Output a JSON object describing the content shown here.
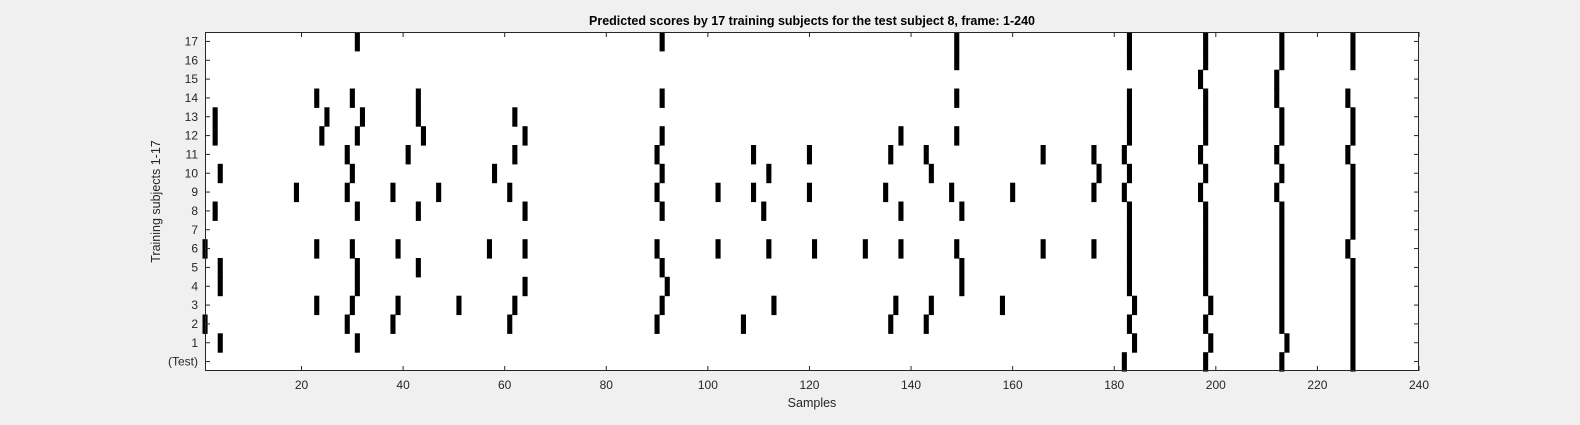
{
  "chart_data": {
    "type": "heatmap",
    "title": "Predicted scores by 17 training subjects for the test subject 8, frame: 1-240",
    "xlabel": "Samples",
    "ylabel": "Training subjects 1-17",
    "xlim": [
      1,
      240
    ],
    "x_ticks": [
      20,
      40,
      60,
      80,
      100,
      120,
      140,
      160,
      180,
      200,
      220,
      240
    ],
    "y_rows": [
      "(Test)",
      "1",
      "2",
      "3",
      "4",
      "5",
      "6",
      "7",
      "8",
      "9",
      "10",
      "11",
      "12",
      "13",
      "14",
      "15",
      "16",
      "17"
    ],
    "grid": false,
    "colors": {
      "mark": "#000000",
      "plot_bg": "#ffffff",
      "figure_bg": "#f0f0f0"
    },
    "rows": [
      {
        "label": "(Test)",
        "x": [
          182,
          198,
          213,
          227
        ]
      },
      {
        "label": "1",
        "x": [
          4,
          31,
          184,
          199,
          214,
          227
        ]
      },
      {
        "label": "2",
        "x": [
          1,
          29,
          38,
          61,
          90,
          107,
          136,
          143,
          183,
          198,
          213,
          227
        ]
      },
      {
        "label": "3",
        "x": [
          23,
          30,
          39,
          51,
          62,
          91,
          113,
          137,
          144,
          158,
          184,
          199,
          213,
          227
        ]
      },
      {
        "label": "4",
        "x": [
          4,
          31,
          64,
          92,
          150,
          183,
          198,
          213,
          227
        ]
      },
      {
        "label": "5",
        "x": [
          4,
          31,
          43,
          91,
          150,
          183,
          198,
          213,
          227
        ]
      },
      {
        "label": "6",
        "x": [
          1,
          23,
          30,
          39,
          57,
          64,
          90,
          102,
          112,
          121,
          131,
          138,
          149,
          166,
          176,
          183,
          198,
          213,
          226
        ]
      },
      {
        "label": "7",
        "x": [
          183,
          198,
          213,
          227
        ]
      },
      {
        "label": "8",
        "x": [
          3,
          31,
          43,
          64,
          91,
          111,
          138,
          150,
          183,
          198,
          213,
          227
        ]
      },
      {
        "label": "9",
        "x": [
          19,
          29,
          38,
          47,
          61,
          90,
          102,
          109,
          120,
          135,
          148,
          160,
          176,
          182,
          197,
          212,
          227
        ]
      },
      {
        "label": "10",
        "x": [
          4,
          30,
          58,
          91,
          112,
          144,
          177,
          183,
          198,
          213,
          227
        ]
      },
      {
        "label": "11",
        "x": [
          29,
          41,
          62,
          90,
          109,
          120,
          136,
          143,
          166,
          176,
          182,
          197,
          212,
          226
        ]
      },
      {
        "label": "12",
        "x": [
          3,
          24,
          31,
          44,
          64,
          91,
          138,
          149,
          183,
          198,
          213,
          227
        ]
      },
      {
        "label": "13",
        "x": [
          3,
          25,
          32,
          43,
          62,
          183,
          198,
          213,
          227
        ]
      },
      {
        "label": "14",
        "x": [
          23,
          30,
          43,
          91,
          149,
          183,
          198,
          212,
          226
        ]
      },
      {
        "label": "15",
        "x": [
          197,
          212
        ]
      },
      {
        "label": "16",
        "x": [
          149,
          183,
          198,
          213,
          227
        ]
      },
      {
        "label": "17",
        "x": [
          31,
          91,
          149,
          183,
          198,
          213,
          227
        ]
      }
    ]
  }
}
